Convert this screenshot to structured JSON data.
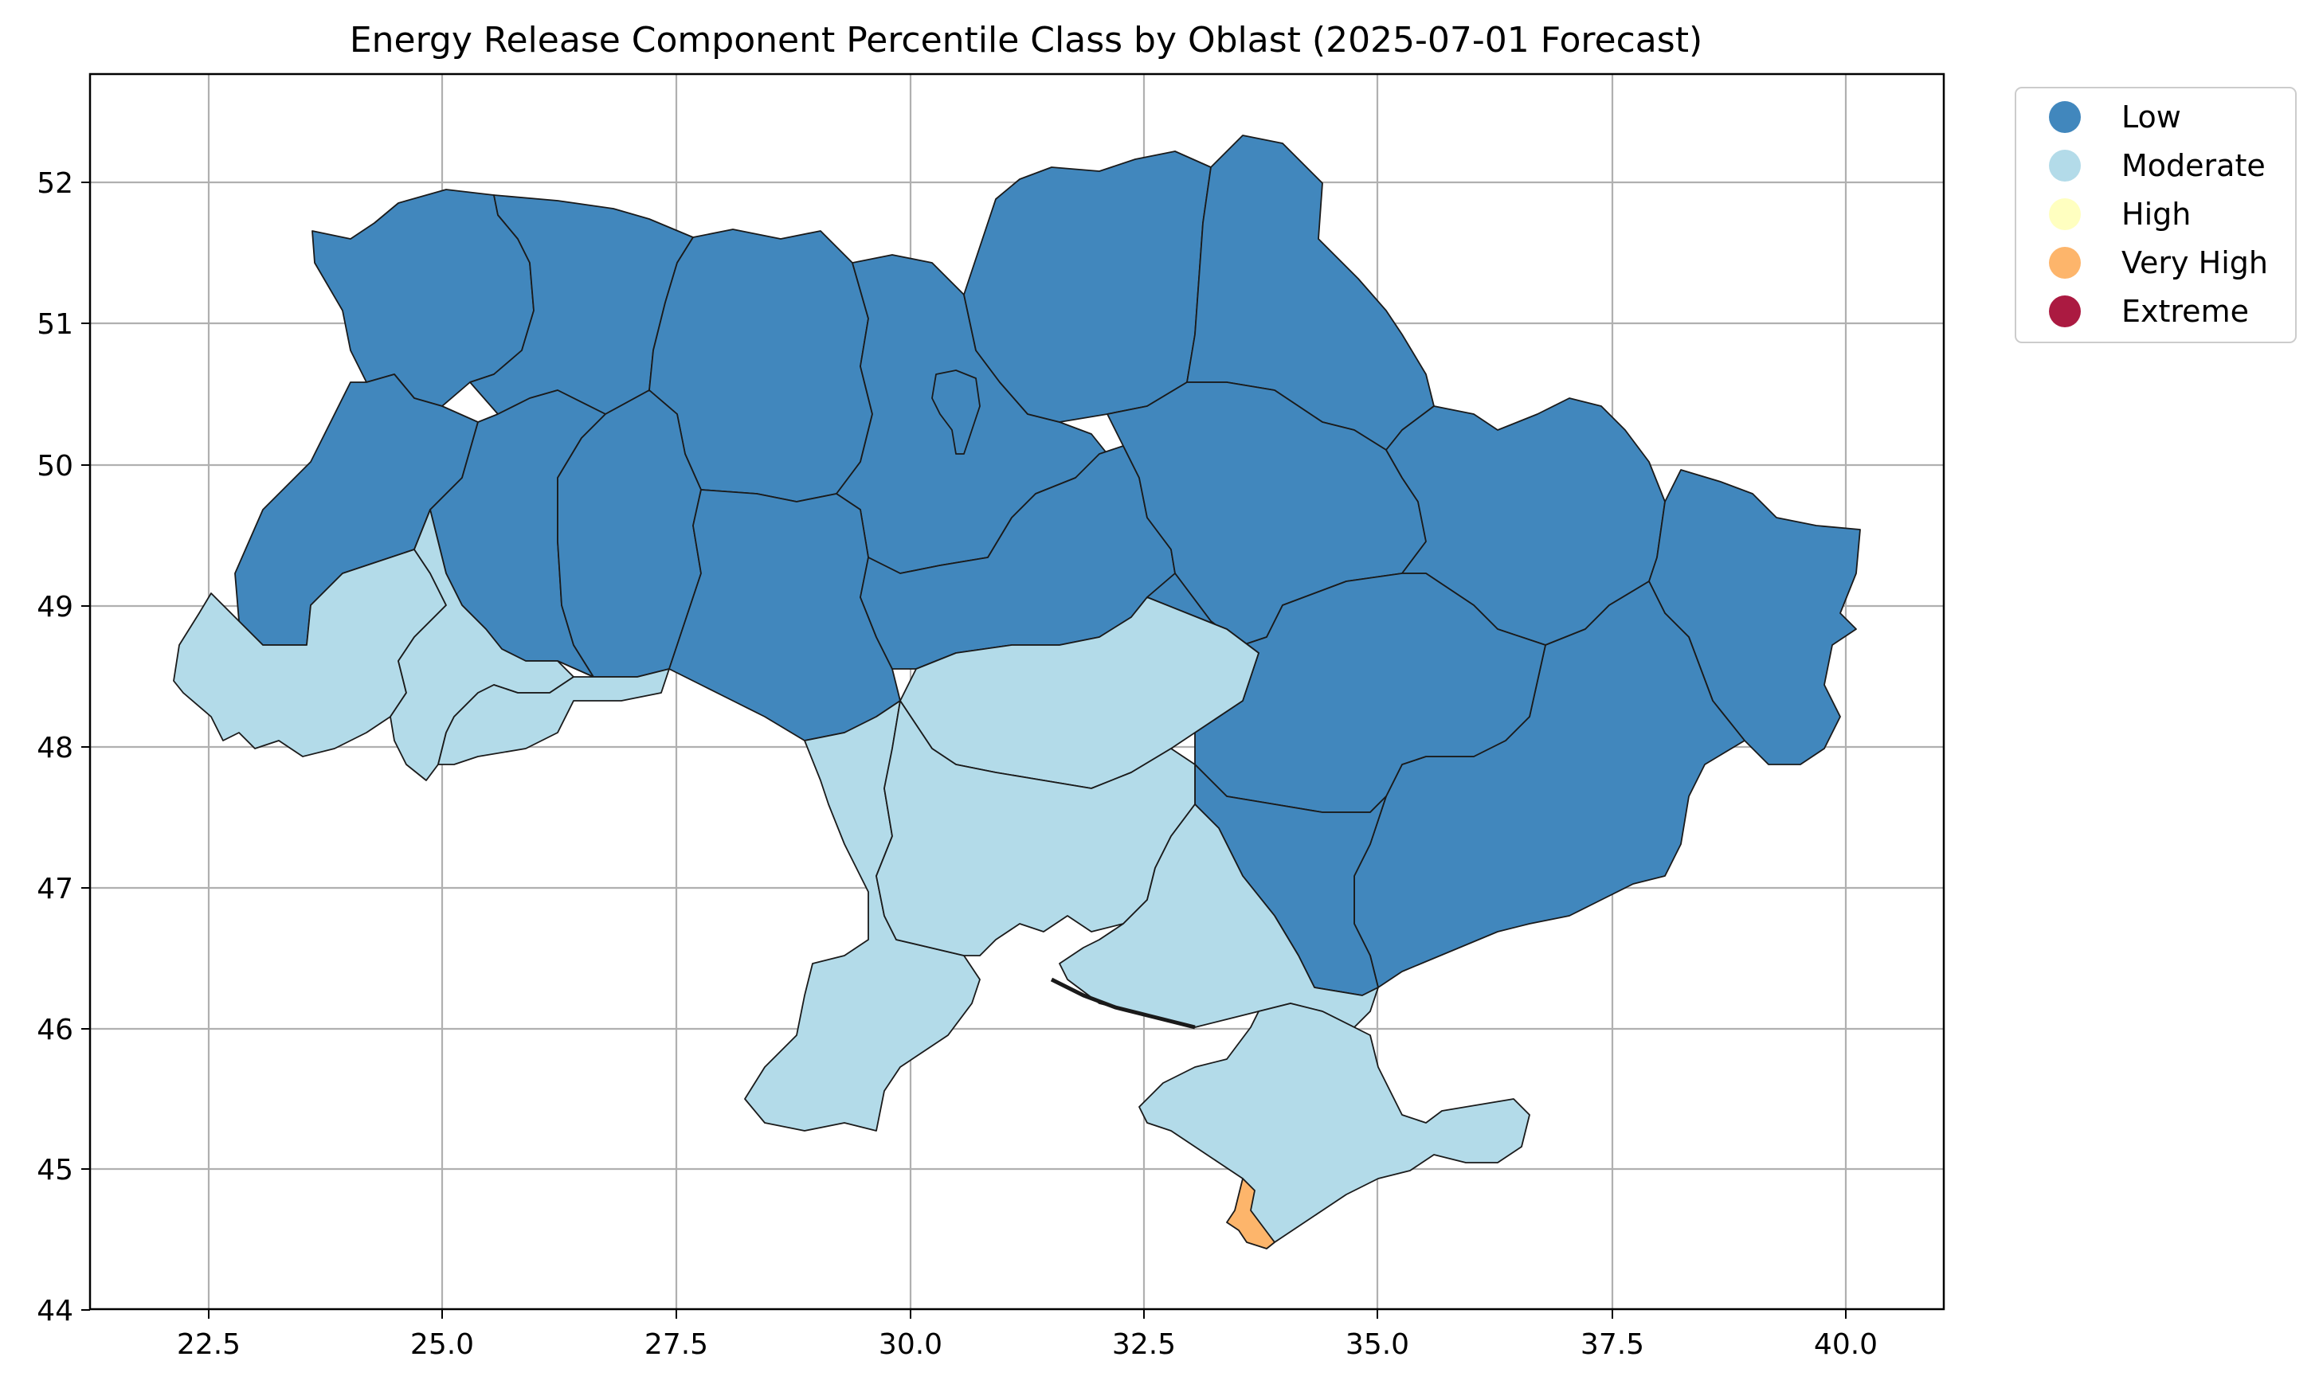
{
  "title": "Energy Release Component Percentile Class by Oblast (2025-07-01 Forecast)",
  "x_ticks": [
    "22.5",
    "25.0",
    "27.5",
    "30.0",
    "32.5",
    "35.0",
    "37.5",
    "40.0"
  ],
  "y_ticks": [
    "44",
    "45",
    "46",
    "47",
    "48",
    "49",
    "50",
    "51",
    "52"
  ],
  "legend": [
    {
      "label": "Low",
      "color": "#4187bd"
    },
    {
      "label": "Moderate",
      "color": "#b3dbe9"
    },
    {
      "label": "High",
      "color": "#ffffc0"
    },
    {
      "label": "Very High",
      "color": "#fdb56b"
    },
    {
      "label": "Extreme",
      "color": "#ab1a41"
    }
  ],
  "chart_data": {
    "type": "choropleth",
    "title": "Energy Release Component Percentile Class by Oblast (2025-07-01 Forecast)",
    "xlim": [
      21.3,
      41.0
    ],
    "ylim": [
      44.0,
      52.8
    ],
    "x_ticks": [
      22.5,
      25.0,
      27.5,
      30.0,
      32.5,
      35.0,
      37.5,
      40.0
    ],
    "y_ticks": [
      44,
      45,
      46,
      47,
      48,
      49,
      50,
      51,
      52
    ],
    "grid": true,
    "legend_position": "outside-top-right",
    "classes": [
      "Low",
      "Moderate",
      "High",
      "Very High",
      "Extreme"
    ],
    "region_classes": {
      "Volyn": "Low",
      "Rivne": "Low",
      "Zhytomyr": "Low",
      "Kyiv": "Low",
      "Kyiv City": "Low",
      "Chernihiv": "Low",
      "Sumy": "Low",
      "Lviv": "Low",
      "Ternopil": "Low",
      "Khmelnytskyi": "Low",
      "Vinnytsia": "Low",
      "Cherkasy": "Low",
      "Poltava": "Low",
      "Kharkiv": "Low",
      "Luhansk": "Low",
      "Donetsk": "Low",
      "Dnipropetrovsk": "Low",
      "Zaporizhzhia": "Low",
      "Zakarpattia": "Moderate",
      "Ivano-Frankivsk": "Moderate",
      "Chernivtsi": "Moderate",
      "Odesa": "Moderate",
      "Kirovohrad": "Moderate",
      "Mykolaiv": "Moderate",
      "Kherson": "Moderate",
      "Crimea": "Moderate",
      "Sevastopol": "Very High"
    }
  }
}
